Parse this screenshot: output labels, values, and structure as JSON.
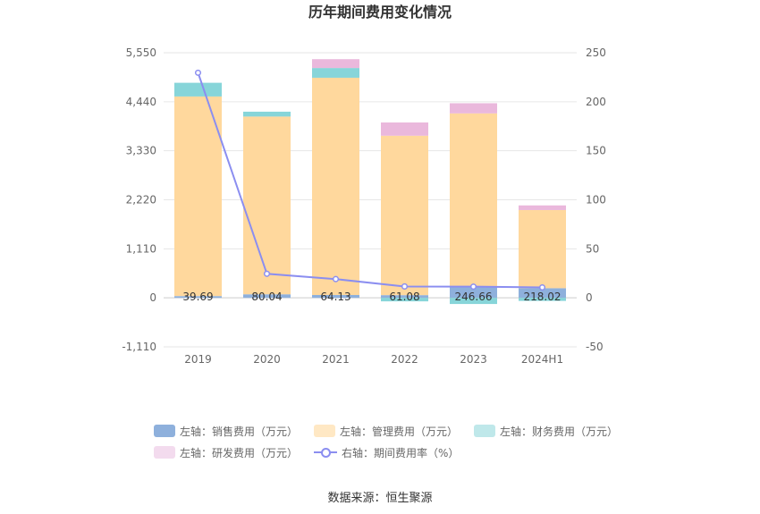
{
  "chart_data": {
    "type": "bar",
    "title": "历年期间费用变化情况",
    "categories": [
      "2019",
      "2020",
      "2021",
      "2022",
      "2023",
      "2024H1"
    ],
    "series": [
      {
        "name": "左轴：销售费用（万元）",
        "axis": "left",
        "color": "#8eb0dc",
        "values": [
          39.69,
          80.04,
          64.13,
          61.08,
          246.66,
          218.02
        ]
      },
      {
        "name": "左轴：管理费用（万元）",
        "axis": "left",
        "color": "#ffd89d",
        "values": [
          4520,
          4025,
          4920,
          3610,
          3930,
          1770
        ]
      },
      {
        "name": "左轴：财务费用（万元）",
        "axis": "left",
        "color": "#87d5d9",
        "values": [
          310,
          110,
          220,
          -80,
          -140,
          -70
        ]
      },
      {
        "name": "左轴：研发费用（万元）",
        "axis": "left",
        "color": "#eab8dc",
        "values": [
          0,
          0,
          200,
          300,
          230,
          105
        ]
      },
      {
        "name": "右轴：期间费用率（%）",
        "axis": "right",
        "type": "line",
        "color": "#8b8ef0",
        "values": [
          229.6,
          24.5,
          19.1,
          11.6,
          11.4,
          10.6
        ]
      }
    ],
    "bar_labels": [
      "39.69",
      "80.04",
      "64.13",
      "61.08",
      "246.66",
      "218.02"
    ],
    "left_axis": {
      "ylim": [
        -1110,
        5550
      ],
      "ticks": [
        "5,550",
        "4,440",
        "3,330",
        "2,220",
        "1,110",
        "0",
        "-1,110"
      ],
      "tick_values": [
        5550,
        4440,
        3330,
        2220,
        1110,
        0,
        -1110
      ]
    },
    "right_axis": {
      "ylim": [
        -50,
        250
      ],
      "ticks": [
        "250",
        "200",
        "150",
        "100",
        "50",
        "0",
        "-50"
      ],
      "tick_values": [
        250,
        200,
        150,
        100,
        50,
        0,
        -50
      ]
    },
    "legend_position": "bottom",
    "source": "数据来源：恒生聚源"
  },
  "legend": {
    "items": [
      {
        "label": "左轴：销售费用（万元）",
        "color": "#8eb0dc",
        "kind": "box"
      },
      {
        "label": "左轴：管理费用（万元）",
        "color": "#ffe8c4",
        "kind": "box"
      },
      {
        "label": "左轴：财务费用（万元）",
        "color": "#bfe8ea",
        "kind": "box"
      },
      {
        "label": "左轴：研发费用（万元）",
        "color": "#f3dbee",
        "kind": "box"
      },
      {
        "label": "右轴：期间费用率（%）",
        "color": "#8b8ef0",
        "kind": "line"
      }
    ]
  },
  "footer": {
    "source": "数据来源：恒生聚源"
  }
}
